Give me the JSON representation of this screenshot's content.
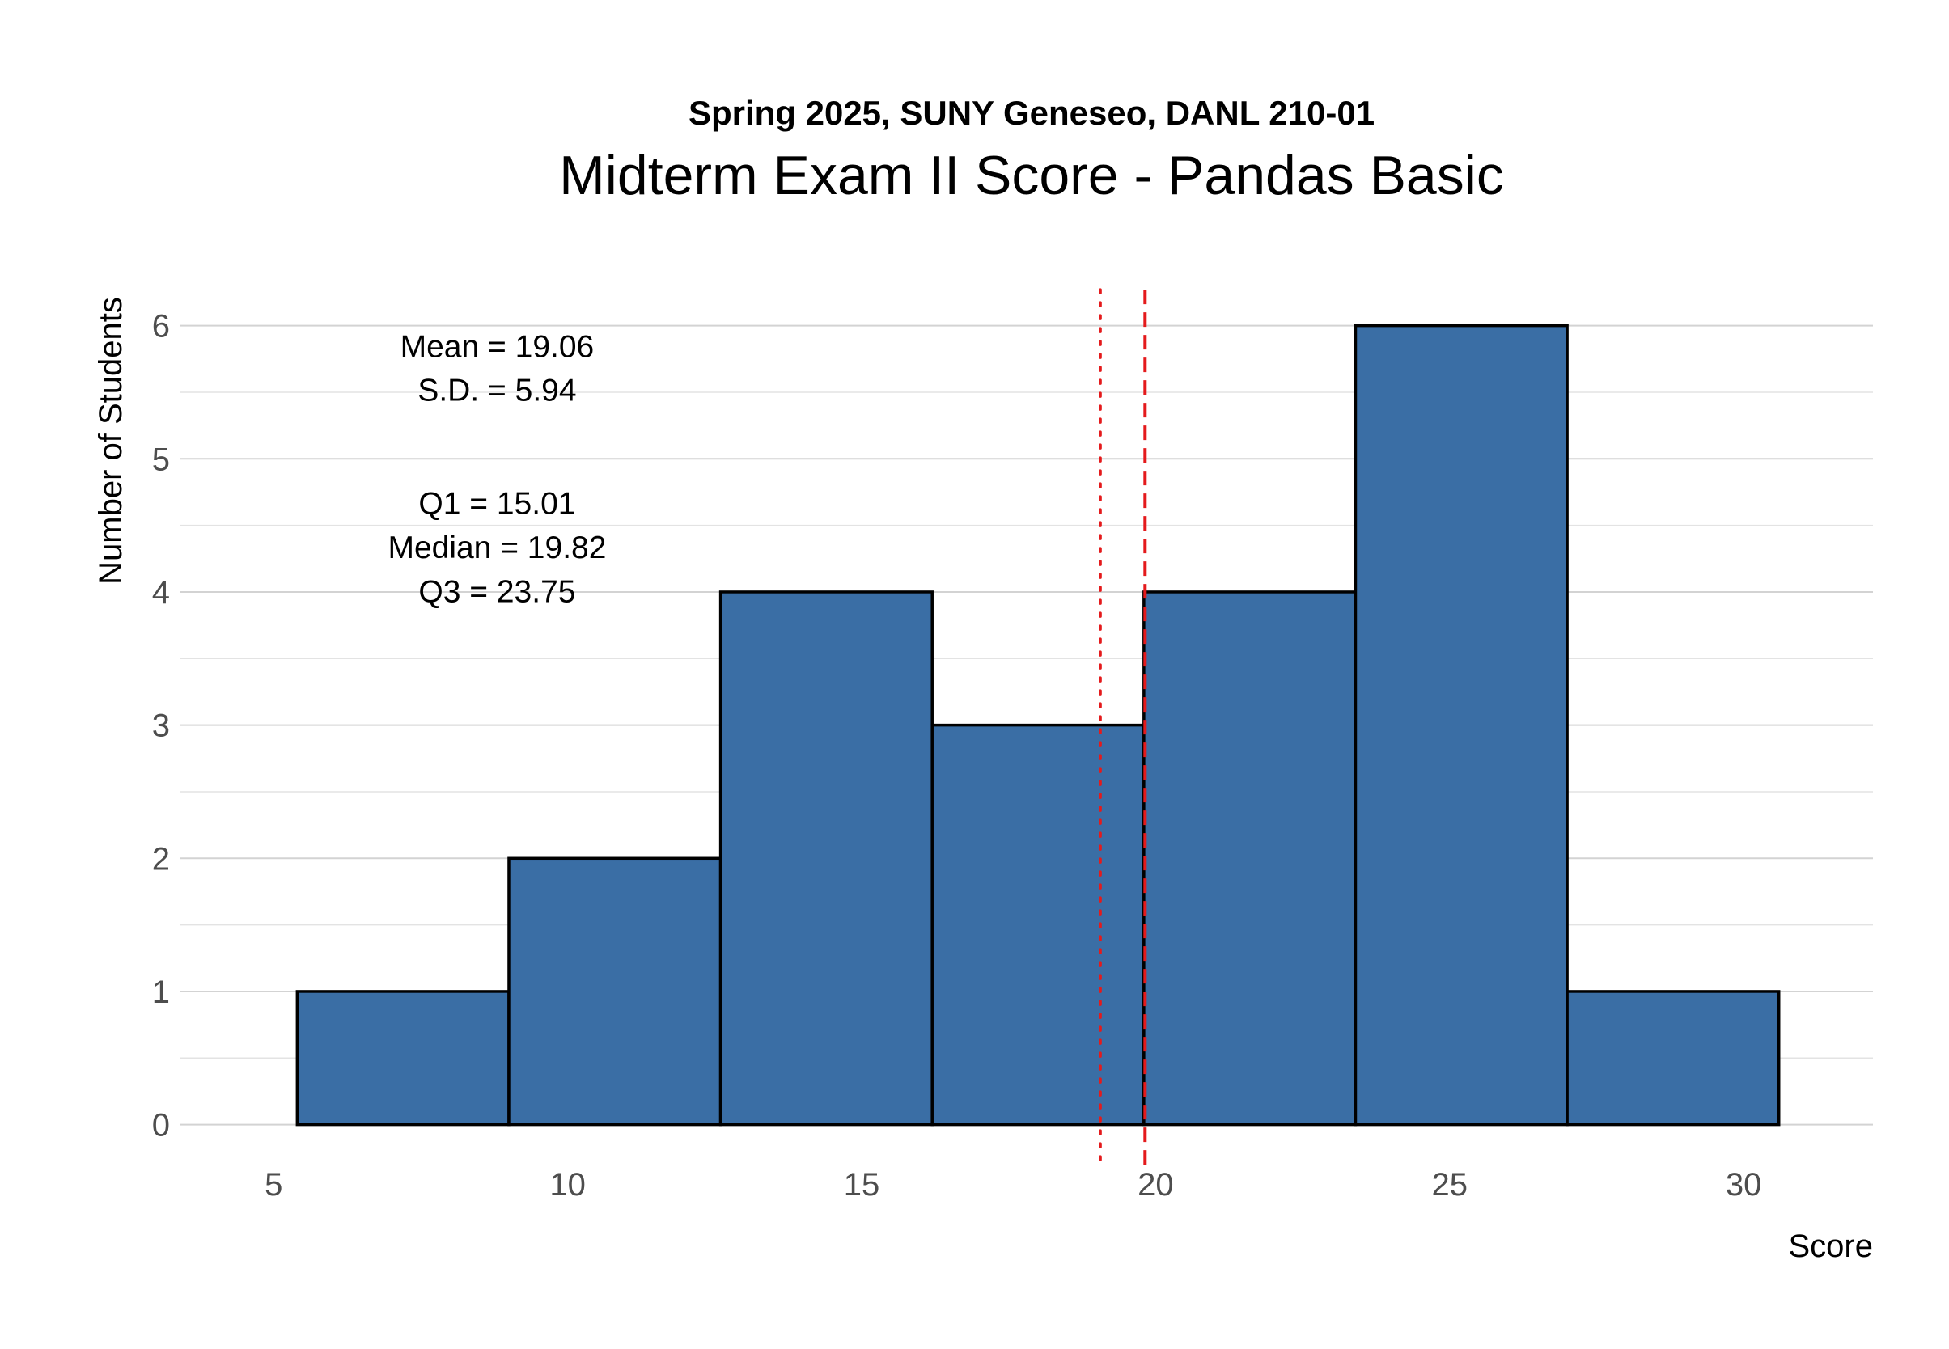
{
  "chart_data": {
    "type": "bar",
    "subtitle": "Spring 2025, SUNY Geneseo, DANL 210-01",
    "title": "Midterm Exam II Score - Pandas Basic",
    "xlabel": "Score",
    "ylabel": "Number of Students",
    "xlim": [
      3.4,
      32.2
    ],
    "ylim": [
      -0.3,
      6.35
    ],
    "x_ticks": [
      5,
      10,
      15,
      20,
      25,
      30
    ],
    "y_ticks": [
      0,
      1,
      2,
      3,
      4,
      5,
      6
    ],
    "y_minor_ticks": [
      0.5,
      1.5,
      2.5,
      3.5,
      4.5,
      5.5
    ],
    "grid": "horizontal",
    "bins": [
      {
        "x0": 5.4,
        "x1": 9.0,
        "count": 1
      },
      {
        "x0": 9.0,
        "x1": 12.6,
        "count": 2
      },
      {
        "x0": 12.6,
        "x1": 16.2,
        "count": 4
      },
      {
        "x0": 16.2,
        "x1": 19.8,
        "count": 3
      },
      {
        "x0": 19.8,
        "x1": 23.4,
        "count": 4
      },
      {
        "x0": 23.4,
        "x1": 27.0,
        "count": 6
      },
      {
        "x0": 27.0,
        "x1": 30.6,
        "count": 1
      }
    ],
    "bar_color": "#3A6EA5",
    "bar_outline_color": "#000000",
    "reference_lines": [
      {
        "label": "Mean",
        "value": 19.06,
        "style": "dotted",
        "color": "#E41A1C"
      },
      {
        "label": "Median",
        "value": 19.82,
        "style": "dashed",
        "color": "#E41A1C"
      }
    ],
    "annotations": [
      {
        "text": "Mean = 19.06",
        "x": 8.8,
        "y": 5.85
      },
      {
        "text": "S.D. = 5.94",
        "x": 8.8,
        "y": 5.52
      },
      {
        "text": "Q1 = 15.01",
        "x": 8.8,
        "y": 4.67
      },
      {
        "text": "Median = 19.82",
        "x": 8.8,
        "y": 4.34
      },
      {
        "text": "Q3 = 23.75",
        "x": 8.8,
        "y": 4.01
      }
    ],
    "statistics": {
      "mean": 19.06,
      "sd": 5.94,
      "q1": 15.01,
      "median": 19.82,
      "q3": 23.75
    }
  }
}
